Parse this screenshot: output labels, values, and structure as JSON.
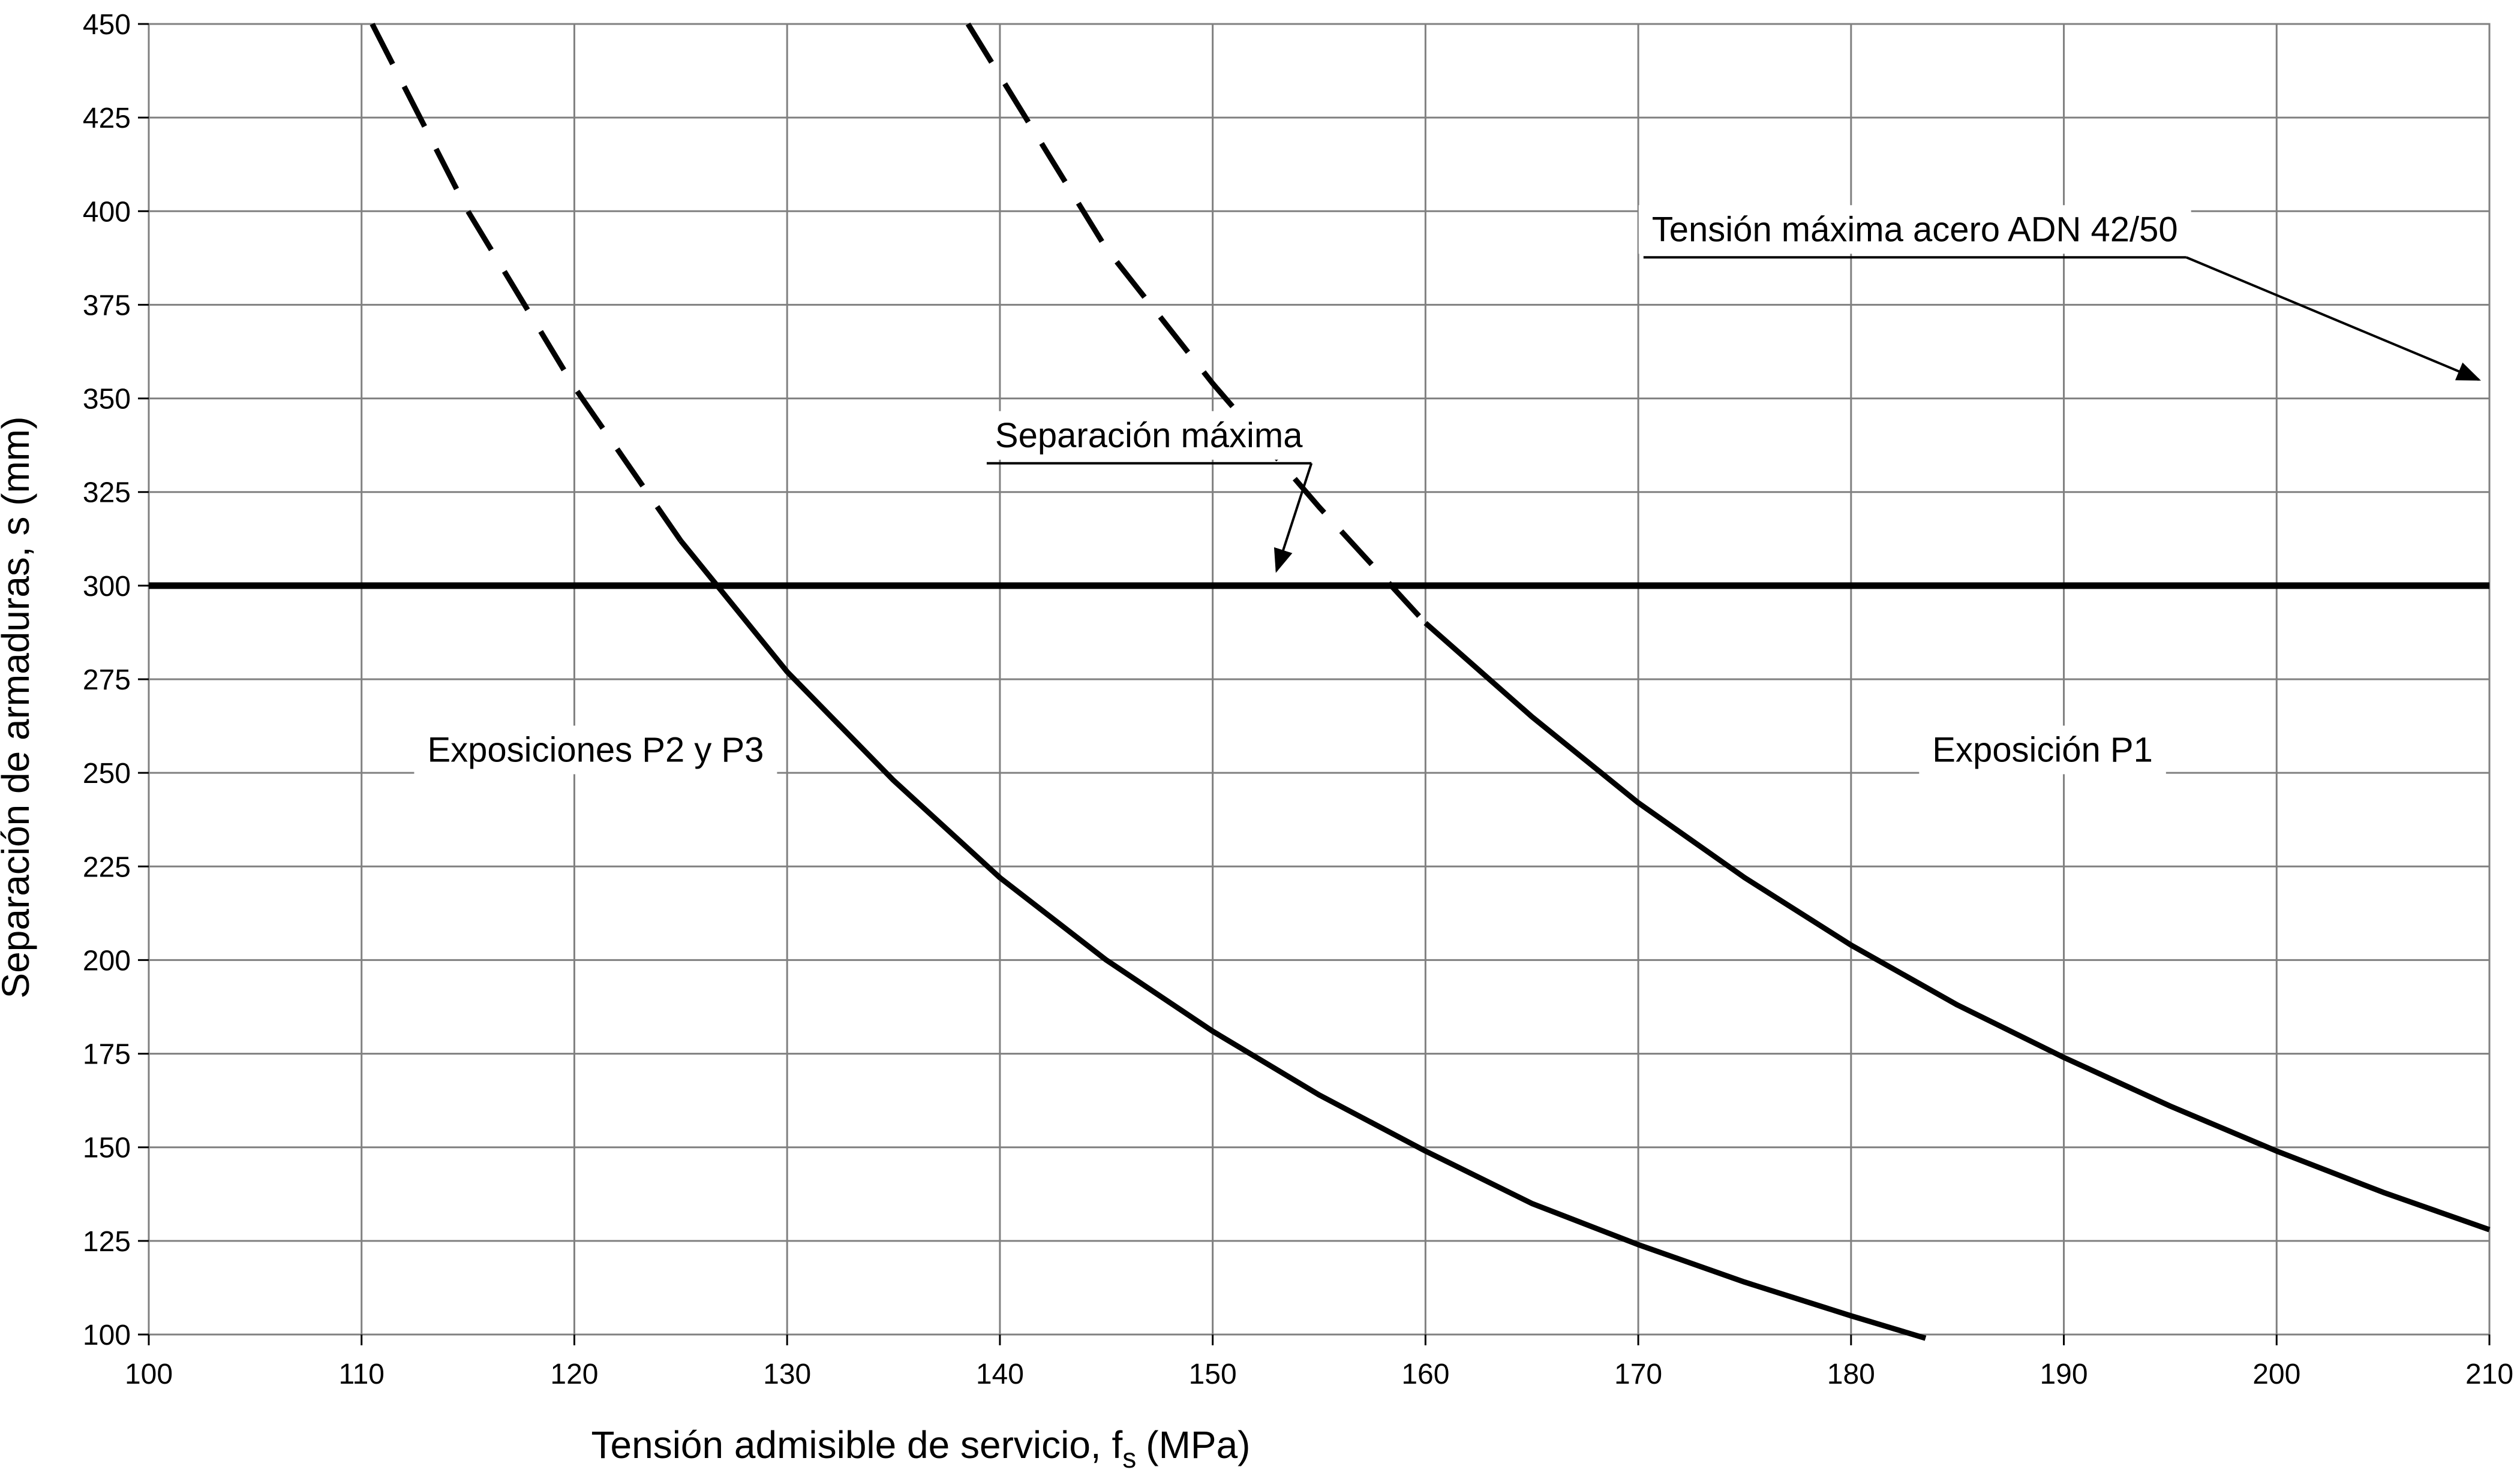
{
  "chart_data": {
    "type": "line",
    "xlabel": "Tensión admisible de servicio, f",
    "xlabel_sub": "s",
    "xlabel_unit": "(MPa)",
    "ylabel": "Separación de armaduras, s (mm)",
    "xlim": [
      100,
      210
    ],
    "ylim": [
      100,
      450
    ],
    "x_ticks": [
      100,
      110,
      120,
      130,
      140,
      150,
      160,
      170,
      180,
      190,
      200,
      210
    ],
    "y_ticks": [
      100,
      125,
      150,
      175,
      200,
      225,
      250,
      275,
      300,
      325,
      350,
      375,
      400,
      425,
      450
    ],
    "grid": true,
    "series": [
      {
        "name": "Exposiciones P2 y P3",
        "style": "dashed",
        "x": [
          110.5,
          115,
          120,
          125
        ],
        "y": [
          450,
          400,
          353,
          312
        ]
      },
      {
        "name": "Exposiciones P2 y P3",
        "style": "solid",
        "x": [
          125,
          130,
          135,
          140,
          145,
          150,
          155,
          160,
          165,
          170,
          175,
          180,
          183.5
        ],
        "y": [
          312,
          277,
          248,
          222,
          200,
          181,
          164,
          149,
          135,
          124,
          114,
          105,
          99
        ]
      },
      {
        "name": "Exposición P1",
        "style": "dashed",
        "x": [
          138.5,
          145,
          150,
          155,
          160
        ],
        "y": [
          450,
          390,
          354,
          321,
          290
        ]
      },
      {
        "name": "Exposición P1",
        "style": "solid",
        "x": [
          160,
          165,
          170,
          175,
          180,
          185,
          190,
          195,
          200,
          205,
          210
        ],
        "y": [
          290,
          265,
          242,
          222,
          204,
          188,
          174,
          161,
          149,
          138,
          128
        ]
      },
      {
        "name": "Separación máxima",
        "style": "solid-thick",
        "x": [
          100,
          210
        ],
        "y": [
          300,
          300
        ]
      }
    ],
    "annotations": [
      {
        "text": "Separación máxima",
        "x": 147,
        "y": 337,
        "arrow_to": [
          153,
          304
        ]
      },
      {
        "text": "Tensión máxima acero ADN 42/50",
        "x": 183,
        "y": 392,
        "arrow_to": [
          209.5,
          355
        ]
      },
      {
        "text": "Exposiciones P2 y P3",
        "x": 121,
        "y": 253
      },
      {
        "text": "Exposición P1",
        "x": 189,
        "y": 253
      }
    ],
    "colors": {
      "lines": "#000000",
      "grid": "#808080"
    }
  }
}
